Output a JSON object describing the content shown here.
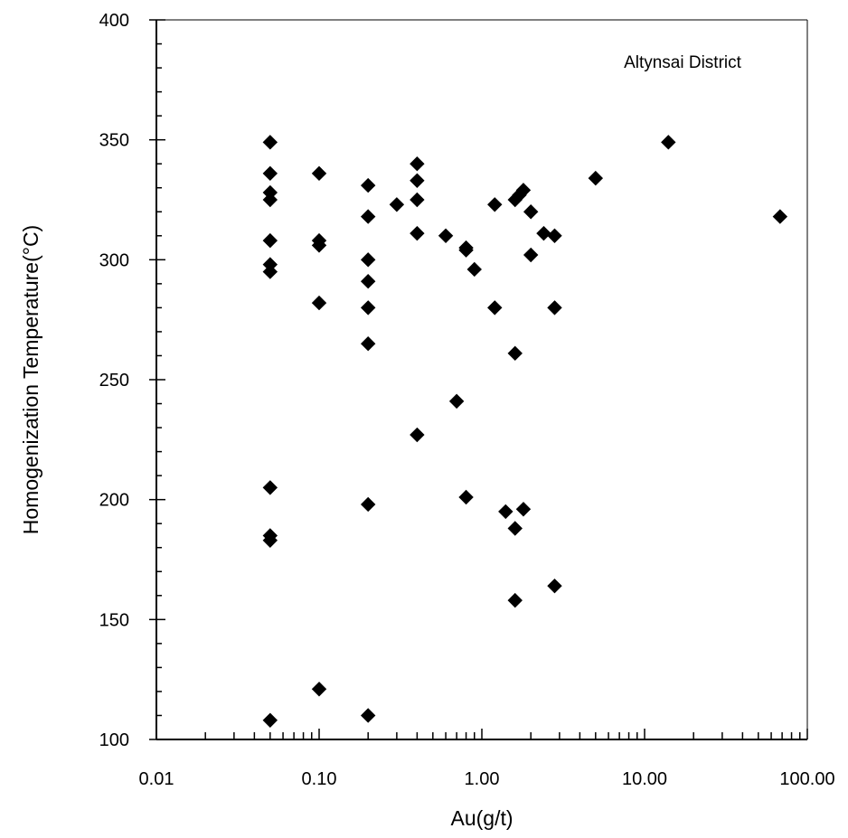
{
  "chart_data": {
    "type": "scatter",
    "title": "",
    "annotation": "Altynsai District",
    "xlabel": "Au(g/t)",
    "ylabel": "Homogenization Temperature(°C)",
    "x_scale": "log",
    "xlim": [
      0.01,
      100
    ],
    "ylim": [
      100,
      400
    ],
    "x_ticks": [
      0.01,
      0.1,
      1,
      10,
      100
    ],
    "x_tick_labels": [
      "0.01",
      "0.10",
      "1.00",
      "10.00",
      "100.00"
    ],
    "y_ticks": [
      100,
      150,
      200,
      250,
      300,
      350,
      400
    ],
    "y_tick_labels": [
      "100",
      "150",
      "200",
      "250",
      "300",
      "350",
      "400"
    ],
    "grid": false,
    "marker": "diamond",
    "marker_color": "#000000",
    "points": [
      {
        "x": 0.05,
        "y": 349
      },
      {
        "x": 0.05,
        "y": 336
      },
      {
        "x": 0.05,
        "y": 328
      },
      {
        "x": 0.05,
        "y": 325
      },
      {
        "x": 0.05,
        "y": 308
      },
      {
        "x": 0.05,
        "y": 298
      },
      {
        "x": 0.05,
        "y": 295
      },
      {
        "x": 0.05,
        "y": 205
      },
      {
        "x": 0.05,
        "y": 185
      },
      {
        "x": 0.05,
        "y": 183
      },
      {
        "x": 0.05,
        "y": 108
      },
      {
        "x": 0.1,
        "y": 336
      },
      {
        "x": 0.1,
        "y": 308
      },
      {
        "x": 0.1,
        "y": 306
      },
      {
        "x": 0.1,
        "y": 282
      },
      {
        "x": 0.1,
        "y": 121
      },
      {
        "x": 0.2,
        "y": 331
      },
      {
        "x": 0.2,
        "y": 318
      },
      {
        "x": 0.2,
        "y": 300
      },
      {
        "x": 0.2,
        "y": 291
      },
      {
        "x": 0.2,
        "y": 280
      },
      {
        "x": 0.2,
        "y": 265
      },
      {
        "x": 0.2,
        "y": 198
      },
      {
        "x": 0.2,
        "y": 110
      },
      {
        "x": 0.3,
        "y": 323
      },
      {
        "x": 0.4,
        "y": 340
      },
      {
        "x": 0.4,
        "y": 333
      },
      {
        "x": 0.4,
        "y": 325
      },
      {
        "x": 0.4,
        "y": 311
      },
      {
        "x": 0.4,
        "y": 227
      },
      {
        "x": 0.6,
        "y": 310
      },
      {
        "x": 0.7,
        "y": 241
      },
      {
        "x": 0.8,
        "y": 305
      },
      {
        "x": 0.8,
        "y": 304
      },
      {
        "x": 0.8,
        "y": 201
      },
      {
        "x": 0.9,
        "y": 296
      },
      {
        "x": 1.2,
        "y": 323
      },
      {
        "x": 1.2,
        "y": 280
      },
      {
        "x": 1.4,
        "y": 195
      },
      {
        "x": 1.6,
        "y": 325
      },
      {
        "x": 1.6,
        "y": 261
      },
      {
        "x": 1.6,
        "y": 188
      },
      {
        "x": 1.6,
        "y": 158
      },
      {
        "x": 1.7,
        "y": 327
      },
      {
        "x": 1.8,
        "y": 329
      },
      {
        "x": 1.8,
        "y": 196
      },
      {
        "x": 2.0,
        "y": 320
      },
      {
        "x": 2.0,
        "y": 302
      },
      {
        "x": 2.4,
        "y": 311
      },
      {
        "x": 2.8,
        "y": 310
      },
      {
        "x": 2.8,
        "y": 280
      },
      {
        "x": 2.8,
        "y": 164
      },
      {
        "x": 5.0,
        "y": 334
      },
      {
        "x": 14.0,
        "y": 349
      },
      {
        "x": 68.0,
        "y": 318
      }
    ]
  }
}
